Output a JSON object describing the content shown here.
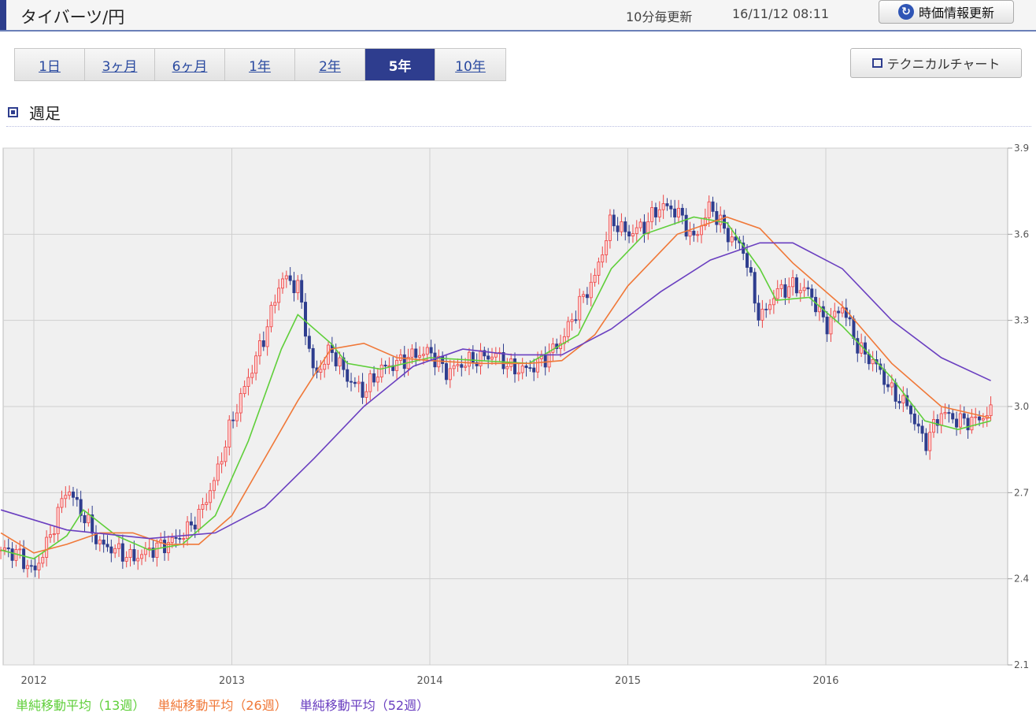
{
  "header": {
    "title": "タイバーツ/円",
    "update_interval": "10分毎更新",
    "timestamp": "16/11/12 08:11",
    "refresh_label": "時価情報更新"
  },
  "tabs": [
    {
      "label": "1日",
      "active": false
    },
    {
      "label": "3ヶ月",
      "active": false
    },
    {
      "label": "6ヶ月",
      "active": false
    },
    {
      "label": "1年",
      "active": false
    },
    {
      "label": "2年",
      "active": false
    },
    {
      "label": "5年",
      "active": true
    },
    {
      "label": "10年",
      "active": false
    }
  ],
  "technical_chart_label": "テクニカルチャート",
  "section_title": "週足",
  "legend": [
    {
      "label": "単純移動平均（13週）",
      "color": "#5fcf3a"
    },
    {
      "label": "単純移動平均（26週）",
      "color": "#f07838"
    },
    {
      "label": "単純移動平均（52週）",
      "color": "#6a3fc0"
    }
  ],
  "colors": {
    "up": "#ee4444",
    "down": "#2e3d8e",
    "grid": "#cfcfcf",
    "plot_bg": "#f0f0f0"
  },
  "chart_data": {
    "type": "candlestick",
    "title": "",
    "xlabel": "",
    "ylabel": "",
    "y_ticks": [
      2.1,
      2.4,
      2.7,
      3.0,
      3.3,
      3.6,
      3.9
    ],
    "ylim": [
      2.1,
      3.9
    ],
    "x_ticks": [
      "2012",
      "2013",
      "2014",
      "2015",
      "2016"
    ],
    "xlim": [
      "2011-11",
      "2016-11"
    ],
    "grid": true,
    "legend_position": "bottom",
    "price_path": [
      [
        "2011-11",
        2.5
      ],
      [
        "2011-12",
        2.49
      ],
      [
        "2012-01",
        2.42
      ],
      [
        "2012-02",
        2.55
      ],
      [
        "2012-03",
        2.72
      ],
      [
        "2012-04",
        2.62
      ],
      [
        "2012-05",
        2.52
      ],
      [
        "2012-06",
        2.5
      ],
      [
        "2012-07",
        2.47
      ],
      [
        "2012-08",
        2.5
      ],
      [
        "2012-09",
        2.52
      ],
      [
        "2012-10",
        2.55
      ],
      [
        "2012-11",
        2.62
      ],
      [
        "2012-12",
        2.75
      ],
      [
        "2013-01",
        2.95
      ],
      [
        "2013-02",
        3.1
      ],
      [
        "2013-03",
        3.25
      ],
      [
        "2013-04",
        3.45
      ],
      [
        "2013-05",
        3.42
      ],
      [
        "2013-06",
        3.1
      ],
      [
        "2013-07",
        3.2
      ],
      [
        "2013-08",
        3.1
      ],
      [
        "2013-09",
        3.05
      ],
      [
        "2013-10",
        3.13
      ],
      [
        "2013-11",
        3.15
      ],
      [
        "2013-12",
        3.18
      ],
      [
        "2014-01",
        3.19
      ],
      [
        "2014-02",
        3.12
      ],
      [
        "2014-03",
        3.15
      ],
      [
        "2014-04",
        3.17
      ],
      [
        "2014-05",
        3.18
      ],
      [
        "2014-06",
        3.13
      ],
      [
        "2014-07",
        3.13
      ],
      [
        "2014-08",
        3.17
      ],
      [
        "2014-09",
        3.23
      ],
      [
        "2014-10",
        3.35
      ],
      [
        "2014-11",
        3.45
      ],
      [
        "2014-12",
        3.65
      ],
      [
        "2015-01",
        3.6
      ],
      [
        "2015-02",
        3.63
      ],
      [
        "2015-03",
        3.7
      ],
      [
        "2015-04",
        3.68
      ],
      [
        "2015-05",
        3.58
      ],
      [
        "2015-06",
        3.7
      ],
      [
        "2015-07",
        3.6
      ],
      [
        "2015-08",
        3.55
      ],
      [
        "2015-09",
        3.3
      ],
      [
        "2015-10",
        3.4
      ],
      [
        "2015-11",
        3.42
      ],
      [
        "2015-12",
        3.4
      ],
      [
        "2016-01",
        3.28
      ],
      [
        "2016-02",
        3.35
      ],
      [
        "2016-03",
        3.2
      ],
      [
        "2016-04",
        3.15
      ],
      [
        "2016-05",
        3.05
      ],
      [
        "2016-06",
        3.0
      ],
      [
        "2016-07",
        2.87
      ],
      [
        "2016-08",
        2.98
      ],
      [
        "2016-09",
        2.95
      ],
      [
        "2016-10",
        2.95
      ],
      [
        "2016-11",
        2.98
      ]
    ],
    "series": [
      {
        "name": "単純移動平均（13週）",
        "points": [
          [
            "2011-11",
            2.5
          ],
          [
            "2012-01",
            2.47
          ],
          [
            "2012-03",
            2.55
          ],
          [
            "2012-04",
            2.64
          ],
          [
            "2012-06",
            2.55
          ],
          [
            "2012-08",
            2.5
          ],
          [
            "2012-10",
            2.52
          ],
          [
            "2012-12",
            2.62
          ],
          [
            "2013-02",
            2.88
          ],
          [
            "2013-04",
            3.2
          ],
          [
            "2013-05",
            3.32
          ],
          [
            "2013-07",
            3.22
          ],
          [
            "2013-08",
            3.15
          ],
          [
            "2013-10",
            3.13
          ],
          [
            "2014-01",
            3.17
          ],
          [
            "2014-04",
            3.16
          ],
          [
            "2014-07",
            3.15
          ],
          [
            "2014-10",
            3.25
          ],
          [
            "2014-12",
            3.48
          ],
          [
            "2015-02",
            3.6
          ],
          [
            "2015-05",
            3.66
          ],
          [
            "2015-07",
            3.64
          ],
          [
            "2015-09",
            3.48
          ],
          [
            "2015-10",
            3.37
          ],
          [
            "2015-12",
            3.38
          ],
          [
            "2016-02",
            3.28
          ],
          [
            "2016-05",
            3.1
          ],
          [
            "2016-07",
            2.95
          ],
          [
            "2016-09",
            2.92
          ],
          [
            "2016-11",
            2.95
          ]
        ]
      },
      {
        "name": "単純移動平均（26週）",
        "points": [
          [
            "2011-11",
            2.56
          ],
          [
            "2012-01",
            2.49
          ],
          [
            "2012-03",
            2.52
          ],
          [
            "2012-05",
            2.56
          ],
          [
            "2012-07",
            2.56
          ],
          [
            "2012-09",
            2.52
          ],
          [
            "2012-11",
            2.52
          ],
          [
            "2013-01",
            2.62
          ],
          [
            "2013-03",
            2.82
          ],
          [
            "2013-05",
            3.02
          ],
          [
            "2013-07",
            3.2
          ],
          [
            "2013-09",
            3.22
          ],
          [
            "2013-11",
            3.17
          ],
          [
            "2014-01",
            3.16
          ],
          [
            "2014-04",
            3.15
          ],
          [
            "2014-07",
            3.15
          ],
          [
            "2014-09",
            3.16
          ],
          [
            "2014-11",
            3.25
          ],
          [
            "2015-01",
            3.42
          ],
          [
            "2015-04",
            3.6
          ],
          [
            "2015-07",
            3.66
          ],
          [
            "2015-09",
            3.62
          ],
          [
            "2015-11",
            3.5
          ],
          [
            "2016-02",
            3.35
          ],
          [
            "2016-05",
            3.15
          ],
          [
            "2016-08",
            3.0
          ],
          [
            "2016-11",
            2.96
          ]
        ]
      },
      {
        "name": "単純移動平均（52週）",
        "points": [
          [
            "2011-11",
            2.64
          ],
          [
            "2012-03",
            2.57
          ],
          [
            "2012-08",
            2.54
          ],
          [
            "2012-12",
            2.56
          ],
          [
            "2013-03",
            2.65
          ],
          [
            "2013-06",
            2.82
          ],
          [
            "2013-09",
            3.0
          ],
          [
            "2013-12",
            3.14
          ],
          [
            "2014-03",
            3.2
          ],
          [
            "2014-06",
            3.18
          ],
          [
            "2014-09",
            3.18
          ],
          [
            "2014-12",
            3.27
          ],
          [
            "2015-03",
            3.4
          ],
          [
            "2015-06",
            3.51
          ],
          [
            "2015-09",
            3.57
          ],
          [
            "2015-11",
            3.57
          ],
          [
            "2016-02",
            3.48
          ],
          [
            "2016-05",
            3.3
          ],
          [
            "2016-08",
            3.17
          ],
          [
            "2016-11",
            3.09
          ]
        ]
      }
    ]
  }
}
